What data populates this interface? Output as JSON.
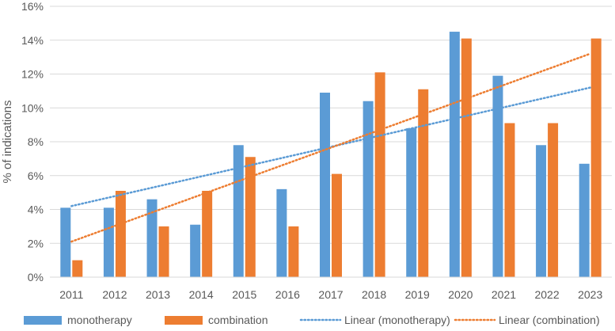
{
  "chart_data": {
    "type": "bar",
    "title": "",
    "xlabel": "",
    "ylabel": "% of indications",
    "ylim": [
      0,
      16
    ],
    "yticks": [
      "0%",
      "2%",
      "4%",
      "6%",
      "8%",
      "10%",
      "12%",
      "14%",
      "16%"
    ],
    "yticks_values": [
      0,
      2,
      4,
      6,
      8,
      10,
      12,
      14,
      16
    ],
    "grid": "horizontal",
    "legend": "bottom",
    "categories": [
      "2011",
      "2012",
      "2013",
      "2014",
      "2015",
      "2016",
      "2017",
      "2018",
      "2019",
      "2020",
      "2021",
      "2022",
      "2023"
    ],
    "series": [
      {
        "name": "monotherapy",
        "color": "#5B9BD5",
        "values": [
          4.1,
          4.1,
          4.6,
          3.1,
          7.8,
          5.2,
          10.9,
          10.4,
          8.8,
          14.5,
          11.9,
          7.8,
          6.7
        ]
      },
      {
        "name": "combination",
        "color": "#ED7D31",
        "values": [
          1.0,
          5.1,
          3.0,
          5.1,
          7.1,
          3.0,
          6.1,
          12.1,
          11.1,
          14.1,
          9.1,
          9.1,
          14.1
        ]
      }
    ],
    "trendlines": [
      {
        "name": "Linear (monotherapy)",
        "color": "#5B9BD5",
        "start": 4.2,
        "end": 11.2
      },
      {
        "name": "Linear (combination)",
        "color": "#ED7D31",
        "start": 2.1,
        "end": 13.2
      }
    ]
  }
}
